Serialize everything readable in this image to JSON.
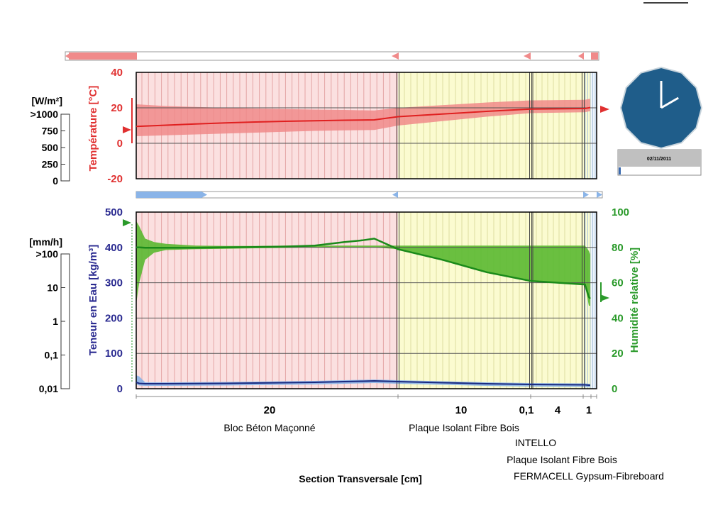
{
  "chart_data": [
    {
      "type": "line",
      "panel": "temperature",
      "ylabel": "Température [°C]",
      "ylim": [
        -20,
        40
      ],
      "yticks": [
        "40",
        "20",
        "0",
        "-20"
      ],
      "grid": true,
      "x_cm": [
        0,
        5,
        10,
        15,
        20,
        25,
        30,
        35,
        40,
        44,
        48,
        52,
        56,
        57,
        59,
        59.7
      ],
      "series": [
        {
          "values": [
            9.5,
            10.2,
            10.9,
            11.5,
            12.0,
            12.4,
            12.7,
            13.0,
            13.2,
            15.0,
            16.5,
            18.0,
            19.3,
            19.6,
            20.0,
            20.2
          ]
        }
      ],
      "band_low": [
        4,
        4.5,
        5,
        5.5,
        6,
        6.5,
        7,
        7.3,
        7.5,
        10,
        12.5,
        15,
        17,
        17.5,
        18,
        18
      ],
      "band_high": [
        22,
        21,
        20.5,
        20,
        19.6,
        19.3,
        19,
        18.8,
        18.5,
        20,
        21.5,
        23,
        24.2,
        24.5,
        25,
        25
      ],
      "colors": {
        "line": "#e02020",
        "band": "#f08a8a",
        "axis": "#e03030"
      },
      "left_scale": {
        "label": "[W/m²]",
        "ticks": [
          ">1000",
          "750",
          "500",
          "250",
          "0"
        ]
      },
      "clock": {
        "date": "02/11/2011",
        "hour_hand_deg": 0,
        "minute_hand_deg": 60
      }
    },
    {
      "type": "line",
      "panel": "moisture",
      "ylabel": "Teneur en Eau [kg/m³]",
      "y2label": "Humidité relative [%]",
      "ylim": [
        0,
        500
      ],
      "y2lim": [
        0,
        100
      ],
      "yticks": [
        "500",
        "400",
        "300",
        "200",
        "100",
        "0"
      ],
      "y2ticks": [
        "100",
        "80",
        "60",
        "40",
        "20",
        "0"
      ],
      "grid": true,
      "x_cm": [
        0,
        0.5,
        1.5,
        3,
        5,
        10,
        15,
        20,
        25,
        30,
        35,
        38,
        40,
        44,
        48,
        52,
        56,
        57,
        59,
        59.7
      ],
      "series": [
        {
          "axis": "right",
          "values": [
            80,
            80,
            79.8,
            79.8,
            79.8,
            79.8,
            80,
            80.2,
            80.5,
            81,
            83,
            84,
            85,
            79,
            73,
            66,
            61,
            59,
            52,
            51
          ]
        },
        {
          "axis": "left",
          "values": [
            18,
            15,
            14,
            14,
            14,
            14.5,
            15,
            16,
            17,
            18,
            20,
            21,
            22,
            20,
            17,
            14,
            12,
            11,
            10,
            10
          ]
        }
      ],
      "rh_band_low": [
        48,
        60,
        73,
        77,
        78.5,
        79,
        79.2,
        79.5,
        79.7,
        80,
        80,
        80,
        80,
        79,
        73,
        66,
        61,
        59,
        47,
        47
      ],
      "rh_band_high": [
        95,
        92,
        85,
        83,
        82,
        81,
        80.8,
        80.8,
        81,
        81,
        81,
        81,
        81,
        81,
        81,
        81,
        81,
        81,
        78,
        76
      ],
      "colors": {
        "rh_line": "#1a8a1a",
        "rh_band": "#5ab830",
        "water_line": "#1a2a80",
        "water_band": "#8ab4e8",
        "left_axis": "#2a2a90",
        "right_axis": "#2a9a2a"
      },
      "left_scale": {
        "label": "[mm/h]",
        "ticks": [
          ">100",
          "10",
          "1",
          "0,1",
          "0,01"
        ]
      }
    }
  ],
  "layers": [
    {
      "name": "Bloc Béton Maçonné",
      "thickness_cm": 44,
      "tick": "20",
      "fill": "#fbe0e0"
    },
    {
      "name": "Plaque Isolant Fibre Bois",
      "thickness_cm": 12,
      "tick": "10",
      "fill": "#fbfbd0"
    },
    {
      "name": "INTELLO",
      "thickness_cm": 0.1,
      "tick": "0,1",
      "fill": "#fbfbd0"
    },
    {
      "name": "Plaque Isolant Fibre Bois",
      "thickness_cm": 4,
      "tick": "4",
      "fill": "#fbfbd0"
    },
    {
      "name": "FERMACELL Gypsum-Fibreboard",
      "thickness_cm": 1,
      "tick": "1",
      "fill": "#eef4fb"
    }
  ],
  "xlabel": "Section Transversale [cm]"
}
